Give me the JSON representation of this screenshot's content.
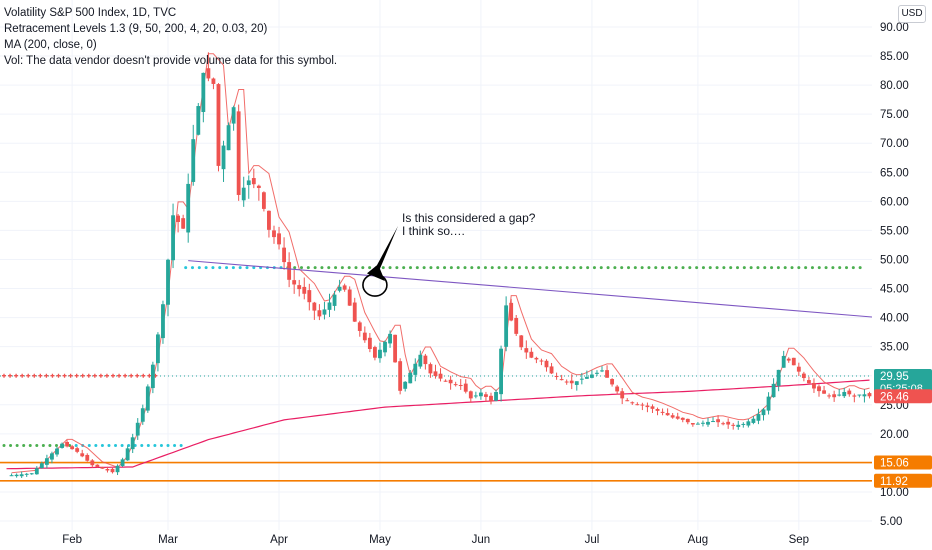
{
  "legend": {
    "title": "Volatility S&P 500 Index, 1D, TVC",
    "line2": "Retracement Levels 1.3 (9, 50, 200, 4, 20, 0.03, 20)",
    "line3": "MA (200, close, 0)",
    "line4": "Vol: The data vendor doesn't provide volume data for this symbol."
  },
  "currency_button": "USD",
  "annotation": {
    "line1": "Is this considered a gap?",
    "line2": "I think so.…"
  },
  "colors": {
    "up": "#26a69a",
    "down": "#ef5350",
    "ma": "#e91e63",
    "trendline": "#7e57c2",
    "green_dots": "#4caf50",
    "orange_level": "#f57c00",
    "price_line": "#26a69a"
  },
  "chart_data": {
    "type": "candlestick",
    "y_axis": {
      "ticks": [
        "90.00",
        "85.00",
        "80.00",
        "75.00",
        "70.00",
        "65.00",
        "60.00",
        "55.00",
        "50.00",
        "45.00",
        "40.00",
        "35.00",
        "30.00",
        "25.00",
        "20.00",
        "15.00",
        "10.00",
        "5.00"
      ],
      "tick_values": [
        90,
        85,
        80,
        75,
        70,
        65,
        60,
        55,
        50,
        45,
        40,
        35,
        30,
        25,
        20,
        15,
        10,
        5
      ],
      "range": [
        3.6,
        93.2
      ]
    },
    "x_axis": {
      "labels": [
        "Feb",
        "Mar",
        "Apr",
        "May",
        "Jun",
        "Jul",
        "Aug",
        "Sep"
      ],
      "label_bar_index": [
        13,
        32,
        54,
        74,
        94,
        116,
        137,
        157
      ],
      "total_bars": 172
    },
    "price_badges": [
      {
        "label": "29.95",
        "sub": "05:25:08",
        "value": 29.95,
        "color": "#26a69a"
      },
      {
        "label": "26.46",
        "value": 26.46,
        "color": "#ef5350"
      },
      {
        "label": "15.06",
        "value": 15.06,
        "color": "#f57c00"
      },
      {
        "label": "11.92",
        "value": 11.92,
        "color": "#f57c00"
      }
    ],
    "horizontal_levels": [
      15.06,
      11.92
    ],
    "green_dot_level_right": 48.6,
    "green_dot_level_left": 18.0,
    "red_cross_level": 30.0,
    "trendline": {
      "from": [
        36,
        49.8
      ],
      "to": [
        172,
        40.1
      ]
    },
    "ma_anchors": [
      [
        0,
        14
      ],
      [
        25,
        14.3
      ],
      [
        40,
        19
      ],
      [
        55,
        22.4
      ],
      [
        75,
        24.6
      ],
      [
        95,
        25.6
      ],
      [
        115,
        26.6
      ],
      [
        135,
        27.3
      ],
      [
        155,
        28.3
      ],
      [
        172,
        29.3
      ]
    ],
    "anchors": [
      [
        0,
        12.8
      ],
      [
        5,
        13.2
      ],
      [
        8,
        15.8
      ],
      [
        11,
        18.3
      ],
      [
        14,
        16.9
      ],
      [
        17,
        14.6
      ],
      [
        21,
        13.4
      ],
      [
        23,
        15.6
      ],
      [
        25,
        19.4
      ],
      [
        27,
        24.4
      ],
      [
        29,
        31.9
      ],
      [
        31,
        42.3
      ],
      [
        33,
        57.6
      ],
      [
        35,
        55.3
      ],
      [
        37,
        70.7
      ],
      [
        39,
        82.1
      ],
      [
        41,
        80.2
      ],
      [
        42,
        66.1
      ],
      [
        44,
        73.1
      ],
      [
        45,
        76.2
      ],
      [
        46,
        61.1
      ],
      [
        48,
        63.6
      ],
      [
        50,
        62.3
      ],
      [
        52,
        55.1
      ],
      [
        54,
        52.6
      ],
      [
        56,
        46.5
      ],
      [
        59,
        44.1
      ],
      [
        61,
        41.2
      ],
      [
        62,
        40.2
      ],
      [
        64,
        42.6
      ],
      [
        66,
        45.3
      ],
      [
        67,
        44.8
      ],
      [
        69,
        39.3
      ],
      [
        71,
        36.1
      ],
      [
        73,
        33.1
      ],
      [
        76,
        37.2
      ],
      [
        78,
        27.4
      ],
      [
        80,
        30.5
      ],
      [
        82,
        33.6
      ],
      [
        84,
        30.4
      ],
      [
        86,
        29.5
      ],
      [
        88,
        28.7
      ],
      [
        90,
        28.4
      ],
      [
        92,
        26.1
      ],
      [
        94,
        27.1
      ],
      [
        96,
        25.6
      ],
      [
        97,
        27.2
      ],
      [
        99,
        42.1
      ],
      [
        100,
        39.5
      ],
      [
        102,
        34.9
      ],
      [
        104,
        33.1
      ],
      [
        106,
        32.5
      ],
      [
        108,
        30.4
      ],
      [
        110,
        29.3
      ],
      [
        112,
        28.7
      ],
      [
        114,
        29.4
      ],
      [
        116,
        30.2
      ],
      [
        118,
        30.8
      ],
      [
        120,
        28.5
      ],
      [
        122,
        26.1
      ],
      [
        124,
        25.3
      ],
      [
        126,
        24.9
      ],
      [
        128,
        24.3
      ],
      [
        130,
        23.6
      ],
      [
        132,
        22.8
      ],
      [
        134,
        22.4
      ],
      [
        136,
        21.6
      ],
      [
        138,
        21.9
      ],
      [
        140,
        22.2
      ],
      [
        142,
        21.8
      ],
      [
        144,
        21.4
      ],
      [
        146,
        21.7
      ],
      [
        148,
        22.6
      ],
      [
        150,
        24.2
      ],
      [
        152,
        28.6
      ],
      [
        154,
        33.4
      ],
      [
        156,
        31.8
      ],
      [
        158,
        29.6
      ],
      [
        160,
        27.8
      ],
      [
        162,
        26.9
      ],
      [
        164,
        26.3
      ],
      [
        166,
        27.2
      ],
      [
        168,
        26.4
      ],
      [
        170,
        26.8
      ],
      [
        171,
        26.46
      ]
    ]
  }
}
